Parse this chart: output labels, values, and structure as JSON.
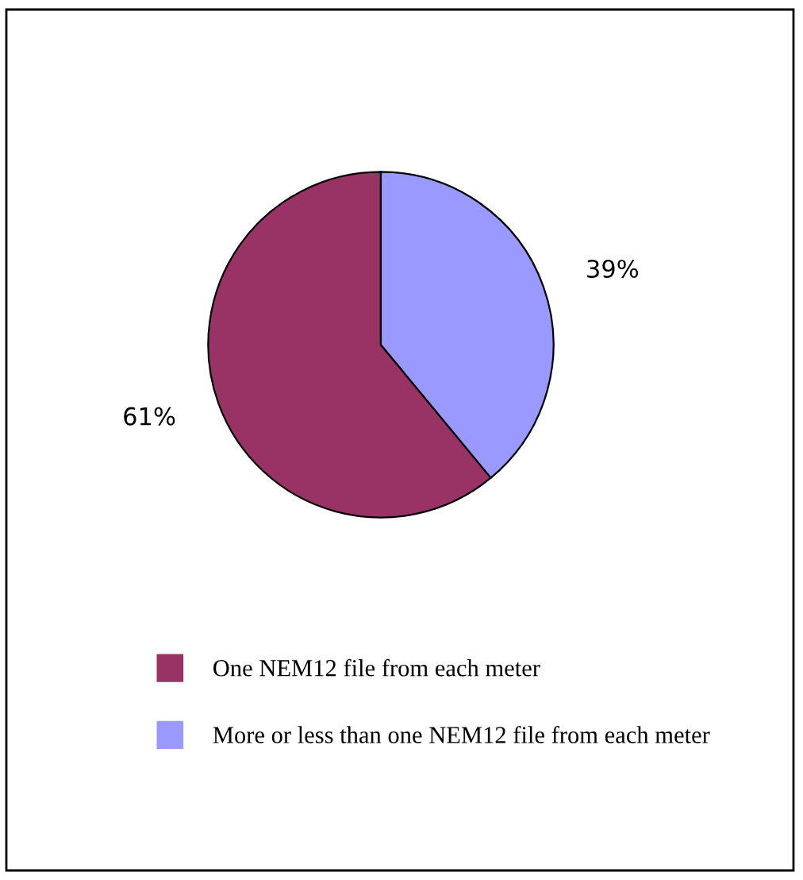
{
  "chart_data": {
    "type": "pie",
    "categories": [
      "One NEM12 file from each meter",
      "More or less than one NEM12 file from each meter"
    ],
    "values": [
      61,
      39
    ],
    "colors": [
      "#993366",
      "#9999ff"
    ],
    "value_labels": [
      "61%",
      "39%"
    ],
    "legend": "bottom"
  }
}
